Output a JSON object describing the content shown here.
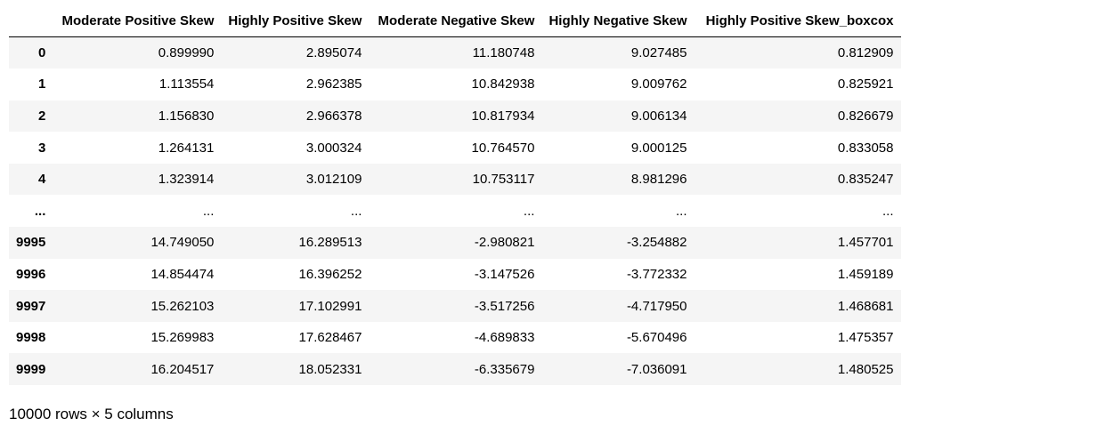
{
  "table": {
    "index_header": "",
    "columns": [
      "Moderate Positive Skew",
      "Highly Positive Skew",
      "Moderate Negative Skew",
      "Highly Negative Skew",
      "Highly Positive Skew_boxcox"
    ],
    "rows": [
      {
        "index": "0",
        "cells": [
          "0.899990",
          "2.895074",
          "11.180748",
          "9.027485",
          "0.812909"
        ]
      },
      {
        "index": "1",
        "cells": [
          "1.113554",
          "2.962385",
          "10.842938",
          "9.009762",
          "0.825921"
        ]
      },
      {
        "index": "2",
        "cells": [
          "1.156830",
          "2.966378",
          "10.817934",
          "9.006134",
          "0.826679"
        ]
      },
      {
        "index": "3",
        "cells": [
          "1.264131",
          "3.000324",
          "10.764570",
          "9.000125",
          "0.833058"
        ]
      },
      {
        "index": "4",
        "cells": [
          "1.323914",
          "3.012109",
          "10.753117",
          "8.981296",
          "0.835247"
        ]
      },
      {
        "index": "...",
        "cells": [
          "...",
          "...",
          "...",
          "...",
          "..."
        ]
      },
      {
        "index": "9995",
        "cells": [
          "14.749050",
          "16.289513",
          "-2.980821",
          "-3.254882",
          "1.457701"
        ]
      },
      {
        "index": "9996",
        "cells": [
          "14.854474",
          "16.396252",
          "-3.147526",
          "-3.772332",
          "1.459189"
        ]
      },
      {
        "index": "9997",
        "cells": [
          "15.262103",
          "17.102991",
          "-3.517256",
          "-4.717950",
          "1.468681"
        ]
      },
      {
        "index": "9998",
        "cells": [
          "15.269983",
          "17.628467",
          "-4.689833",
          "-5.670496",
          "1.475357"
        ]
      },
      {
        "index": "9999",
        "cells": [
          "16.204517",
          "18.052331",
          "-6.335679",
          "-7.036091",
          "1.480525"
        ]
      }
    ]
  },
  "footer": {
    "shape_text": "10000 rows × 5 columns"
  },
  "colors": {
    "stripe": "#f5f5f5",
    "header_rule": "#000000"
  }
}
